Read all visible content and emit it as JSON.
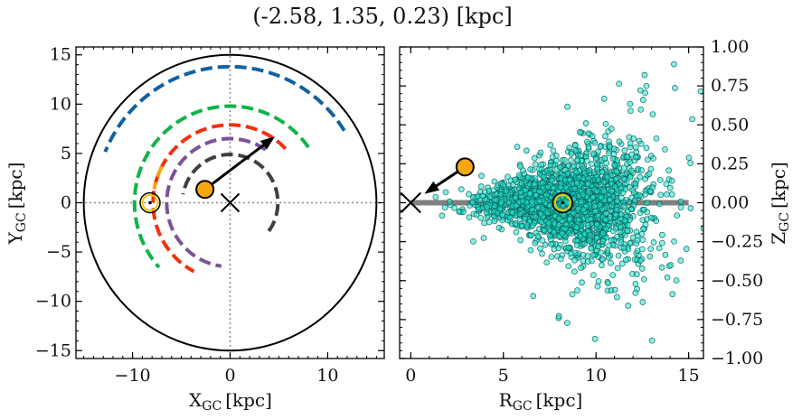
{
  "chart_data": [
    {
      "type": "scatter",
      "panel": "xy",
      "title": "(-2.58, 1.35, 0.23) [kpc]",
      "xlabel": "X",
      "xlabel_sub": "GC",
      "xlabel_unit": "[kpc]",
      "ylabel": "Y",
      "ylabel_sub": "GC",
      "ylabel_unit": "[kpc]",
      "xlim": [
        -15.8,
        15.8
      ],
      "ylim": [
        -15.8,
        15.8
      ],
      "xticks": [
        -10,
        0,
        10
      ],
      "yticks": [
        -15,
        -10,
        -5,
        0,
        5,
        10,
        15
      ],
      "boundary_circle_radius": 15,
      "galactic_center": [
        0,
        0
      ],
      "sun": [
        -8.2,
        0
      ],
      "object": [
        -2.58,
        1.35
      ],
      "velocity_arrow_end": [
        4.3,
        6.5
      ],
      "arcs": [
        {
          "color": "#1261a0",
          "radius": 13.8,
          "deg_start": 32,
          "deg_end": 158
        },
        {
          "color": "#12b34a",
          "radius": 9.8,
          "deg_start": 35,
          "deg_end": 222
        },
        {
          "color": "#f0310f",
          "radius": 7.9,
          "deg_start": 44,
          "deg_end": 242
        },
        {
          "color": "#7a5299",
          "radius": 6.5,
          "deg_start": 56,
          "deg_end": 262
        },
        {
          "color": "#404040",
          "radius": 4.9,
          "deg_start": -36,
          "deg_end": 170
        },
        {
          "color": "#f7a10f",
          "radius": 7.9,
          "deg_start": 152,
          "deg_end": 170
        }
      ]
    },
    {
      "type": "scatter",
      "panel": "rz",
      "xlabel": "R",
      "xlabel_sub": "GC",
      "xlabel_unit": "[kpc]",
      "ylabel": "Z",
      "ylabel_sub": "GC",
      "ylabel_unit": "[kpc]",
      "xlim": [
        -0.6,
        15.8
      ],
      "ylim": [
        -1.0,
        1.0
      ],
      "xticks": [
        0,
        5,
        10,
        15
      ],
      "yticks": [
        1.0,
        0.75,
        0.5,
        0.25,
        0.0,
        -0.25,
        -0.5,
        -0.75,
        -1.0
      ],
      "ytick_labels": [
        "1.00",
        "0.75",
        "0.50",
        "0.25",
        "0.00",
        "−0.25",
        "−0.50",
        "−0.75",
        "−1.00"
      ],
      "disk_line": {
        "r": [
          0,
          15
        ],
        "z": 0
      },
      "galactic_center": [
        0,
        0
      ],
      "sun": [
        8.2,
        0
      ],
      "object": [
        2.93,
        0.23
      ],
      "velocity_arrow_end": [
        0.9,
        0.07
      ],
      "stars": {
        "count": 2000,
        "r_mean": 8.5,
        "r_std": 2.3,
        "z_std": 0.12,
        "color": "#20e5d0"
      }
    }
  ]
}
